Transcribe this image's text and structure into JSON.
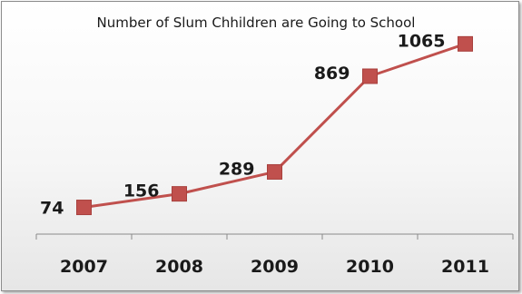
{
  "chart_data": {
    "type": "line",
    "title": "Number of Slum Chhildren are Going to School",
    "categories": [
      "2007",
      "2008",
      "2009",
      "2010",
      "2011"
    ],
    "values": [
      74,
      156,
      289,
      869,
      1065
    ],
    "xlabel": "",
    "ylabel": "",
    "ylim": [
      0,
      1100
    ],
    "grid": false,
    "legend": "none",
    "line_color": "#c0504d",
    "marker": "square"
  }
}
